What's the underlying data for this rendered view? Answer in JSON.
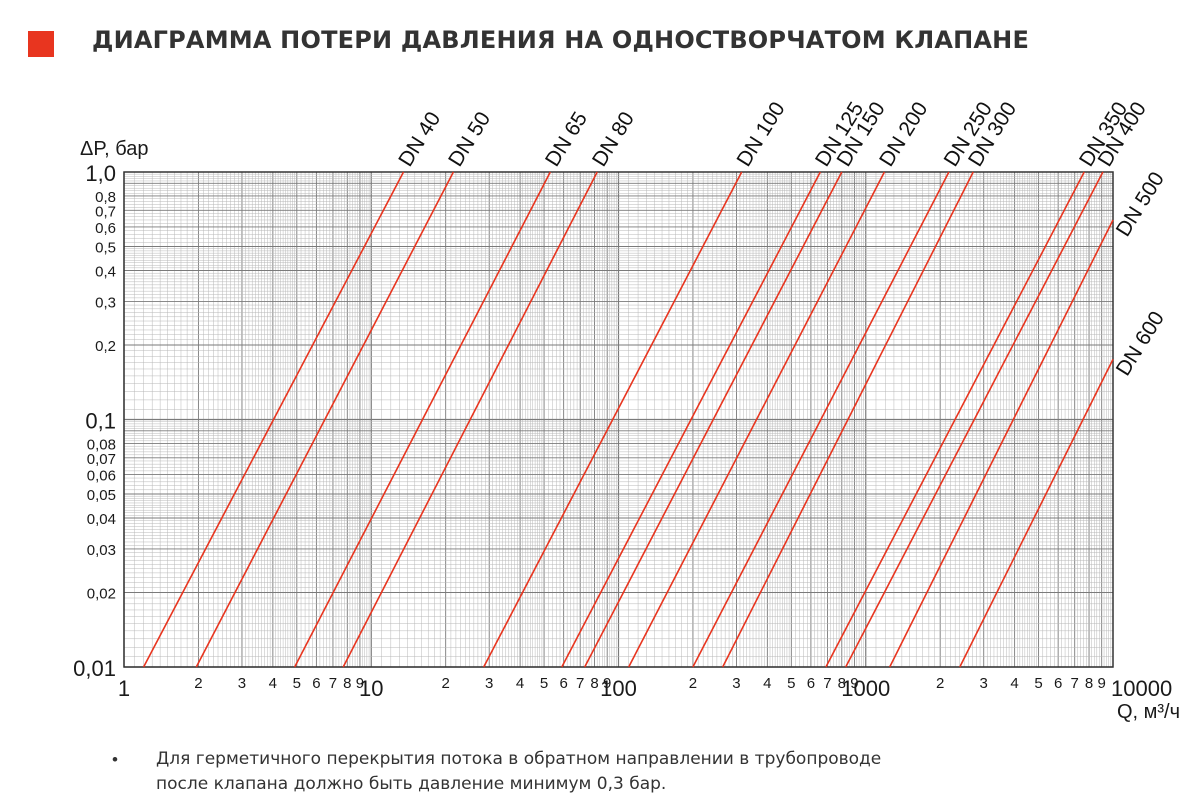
{
  "header": {
    "title": "ДИАГРАММА ПОТЕРИ ДАВЛЕНИЯ НА ОДНОСТВОРЧАТОМ КЛАПАНЕ",
    "marker_color": "#e8351f"
  },
  "chart_data": {
    "type": "line",
    "title": "ДИАГРАММА ПОТЕРИ ДАВЛЕНИЯ НА ОДНОСТВОРЧАТОМ КЛАПАНЕ",
    "xlabel": "Q, м³/ч",
    "ylabel": "ΔP, бар",
    "xscale": "log",
    "yscale": "log",
    "xlim": [
      1,
      10000
    ],
    "ylim": [
      0.01,
      1.0
    ],
    "grid": true,
    "line_color": "#e8351f",
    "x_tick_labels": [
      {
        "v": 1,
        "t": "1",
        "major": true
      },
      {
        "v": 2,
        "t": "2"
      },
      {
        "v": 3,
        "t": "3"
      },
      {
        "v": 4,
        "t": "4"
      },
      {
        "v": 5,
        "t": "5"
      },
      {
        "v": 6,
        "t": "6"
      },
      {
        "v": 7,
        "t": "7"
      },
      {
        "v": 8,
        "t": "8"
      },
      {
        "v": 9,
        "t": "9"
      },
      {
        "v": 10,
        "t": "10",
        "major": true
      },
      {
        "v": 20,
        "t": "2"
      },
      {
        "v": 30,
        "t": "3"
      },
      {
        "v": 40,
        "t": "4"
      },
      {
        "v": 50,
        "t": "5"
      },
      {
        "v": 60,
        "t": "6"
      },
      {
        "v": 70,
        "t": "7"
      },
      {
        "v": 80,
        "t": "8"
      },
      {
        "v": 90,
        "t": "9"
      },
      {
        "v": 100,
        "t": "100",
        "major": true
      },
      {
        "v": 200,
        "t": "2"
      },
      {
        "v": 300,
        "t": "3"
      },
      {
        "v": 400,
        "t": "4"
      },
      {
        "v": 500,
        "t": "5"
      },
      {
        "v": 600,
        "t": "6"
      },
      {
        "v": 700,
        "t": "7"
      },
      {
        "v": 800,
        "t": "8"
      },
      {
        "v": 900,
        "t": "9"
      },
      {
        "v": 1000,
        "t": "1000",
        "major": true
      },
      {
        "v": 2000,
        "t": "2"
      },
      {
        "v": 3000,
        "t": "3"
      },
      {
        "v": 4000,
        "t": "4"
      },
      {
        "v": 5000,
        "t": "5"
      },
      {
        "v": 6000,
        "t": "6"
      },
      {
        "v": 7000,
        "t": "7"
      },
      {
        "v": 8000,
        "t": "8"
      },
      {
        "v": 9000,
        "t": "9"
      },
      {
        "v": 10000,
        "t": "10000",
        "major": true
      }
    ],
    "y_tick_labels": [
      {
        "v": 1.0,
        "t": "1,0",
        "major": true
      },
      {
        "v": 0.8,
        "t": "0,8"
      },
      {
        "v": 0.7,
        "t": "0,7"
      },
      {
        "v": 0.6,
        "t": "0,6"
      },
      {
        "v": 0.5,
        "t": "0,5"
      },
      {
        "v": 0.4,
        "t": "0,4"
      },
      {
        "v": 0.3,
        "t": "0,3"
      },
      {
        "v": 0.2,
        "t": "0,2"
      },
      {
        "v": 0.1,
        "t": "0,1",
        "major": true
      },
      {
        "v": 0.08,
        "t": "0,08"
      },
      {
        "v": 0.07,
        "t": "0,07"
      },
      {
        "v": 0.06,
        "t": "0,06"
      },
      {
        "v": 0.05,
        "t": "0,05"
      },
      {
        "v": 0.04,
        "t": "0,04"
      },
      {
        "v": 0.03,
        "t": "0,03"
      },
      {
        "v": 0.02,
        "t": "0,02"
      },
      {
        "v": 0.01,
        "t": "0,01",
        "major": true
      }
    ],
    "series": [
      {
        "name": "DN 40",
        "x": [
          1.2,
          13.5
        ],
        "y": [
          0.01,
          1.0
        ]
      },
      {
        "name": "DN 50",
        "x": [
          1.96,
          21.5
        ],
        "y": [
          0.01,
          1.0
        ]
      },
      {
        "name": "DN 65",
        "x": [
          4.9,
          53
        ],
        "y": [
          0.01,
          1.0
        ]
      },
      {
        "name": "DN 80",
        "x": [
          7.7,
          82
        ],
        "y": [
          0.01,
          1.0
        ]
      },
      {
        "name": "DN 100",
        "x": [
          28.5,
          315
        ],
        "y": [
          0.01,
          1.0
        ]
      },
      {
        "name": "DN 125",
        "x": [
          59,
          655
        ],
        "y": [
          0.01,
          1.0
        ]
      },
      {
        "name": "DN 150",
        "x": [
          73,
          800
        ],
        "y": [
          0.01,
          1.0
        ]
      },
      {
        "name": "DN 200",
        "x": [
          110,
          1190
        ],
        "y": [
          0.01,
          1.0
        ]
      },
      {
        "name": "DN 250",
        "x": [
          200,
          2170
        ],
        "y": [
          0.01,
          1.0
        ]
      },
      {
        "name": "DN 300",
        "x": [
          264,
          2720
        ],
        "y": [
          0.01,
          1.0
        ]
      },
      {
        "name": "DN 350",
        "x": [
          690,
          7650
        ],
        "y": [
          0.01,
          1.0
        ]
      },
      {
        "name": "DN 400",
        "x": [
          830,
          9100
        ],
        "y": [
          0.01,
          1.0
        ]
      },
      {
        "name": "DN 500",
        "x": [
          1250,
          10000
        ],
        "y": [
          0.01,
          0.64
        ]
      },
      {
        "name": "DN 600",
        "x": [
          2400,
          10000
        ],
        "y": [
          0.01,
          0.175
        ]
      }
    ]
  },
  "note": {
    "bullet": "•",
    "line1": "Для герметичного перекрытия потока в обратном направлении в трубопроводе",
    "line2": "после клапана должно быть давление минимум 0,3 бар."
  }
}
